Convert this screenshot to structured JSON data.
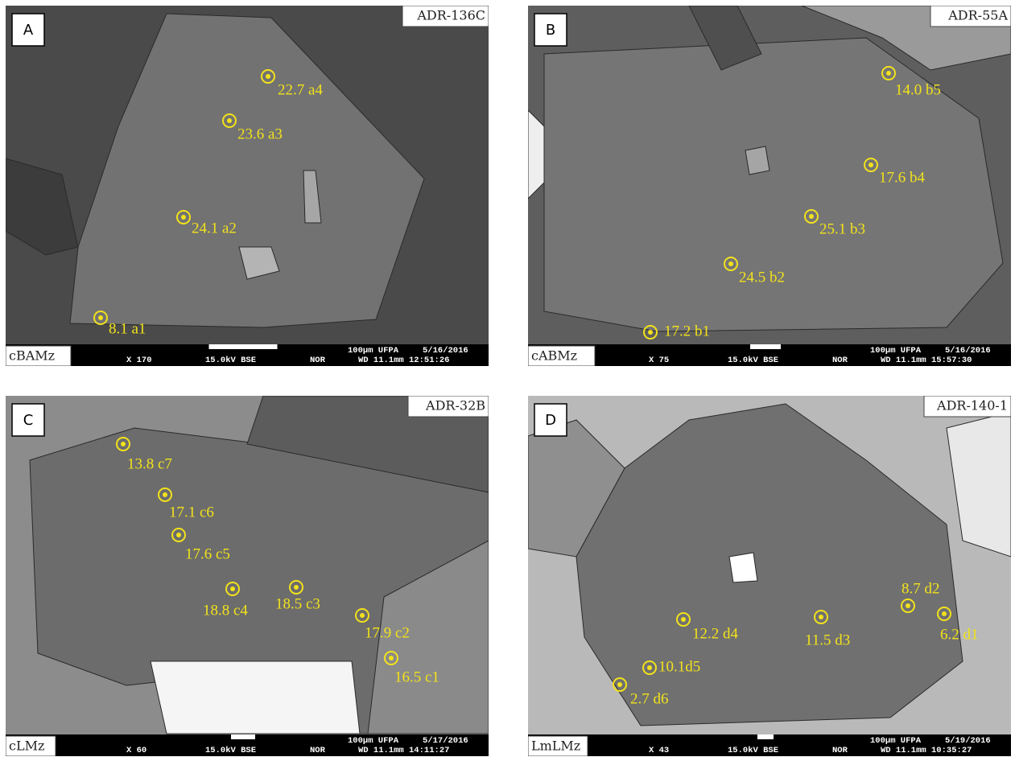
{
  "panels": [
    {
      "letter": "A",
      "sample": "ADR-136C",
      "texture": "cBAMz",
      "info": {
        "magnification": "X 170",
        "voltage": "15.0kV BSE",
        "mode": "NOR",
        "scale": "100µm UFPA",
        "date": "5/16/2016",
        "time": "WD 11.1mm 12:51:26"
      },
      "points": [
        "22.7 a4",
        "23.6 a3",
        "24.1 a2",
        "8.1 a1"
      ]
    },
    {
      "letter": "B",
      "sample": "ADR-55A",
      "texture": "cABMz",
      "info": {
        "magnification": "X 75",
        "voltage": "15.0kV BSE",
        "mode": "NOR",
        "scale": "100µm UFPA",
        "date": "5/16/2016",
        "time": "WD 11.1mm 15:57:30"
      },
      "points": [
        "14.0 b5",
        "17.6 b4",
        "25.1 b3",
        "24.5 b2",
        "17.2 b1"
      ]
    },
    {
      "letter": "C",
      "sample": "ADR-32B",
      "texture": "cLMz",
      "info": {
        "magnification": "X 60",
        "voltage": "15.0kV BSE",
        "mode": "NOR",
        "scale": "100µm UFPA",
        "date": "5/17/2016",
        "time": "WD 11.1mm 14:11:27"
      },
      "points": [
        "13.8 c7",
        "17.1 c6",
        "17.6 c5",
        "18.8 c4",
        "18.5 c3",
        "17.9 c2",
        "16.5 c1"
      ]
    },
    {
      "letter": "D",
      "sample": "ADR-140-1",
      "texture": "LmLMz",
      "info": {
        "magnification": "X 43",
        "voltage": "15.0kV BSE",
        "mode": "NOR",
        "scale": "100µm UFPA",
        "date": "5/19/2016",
        "time": "WD 11.1mm 10:35:27"
      },
      "points": [
        "8.7 d2",
        "6.2 d1",
        "11.5 d3",
        "12.2 d4",
        "10.1d5",
        "2.7 d6"
      ]
    }
  ]
}
